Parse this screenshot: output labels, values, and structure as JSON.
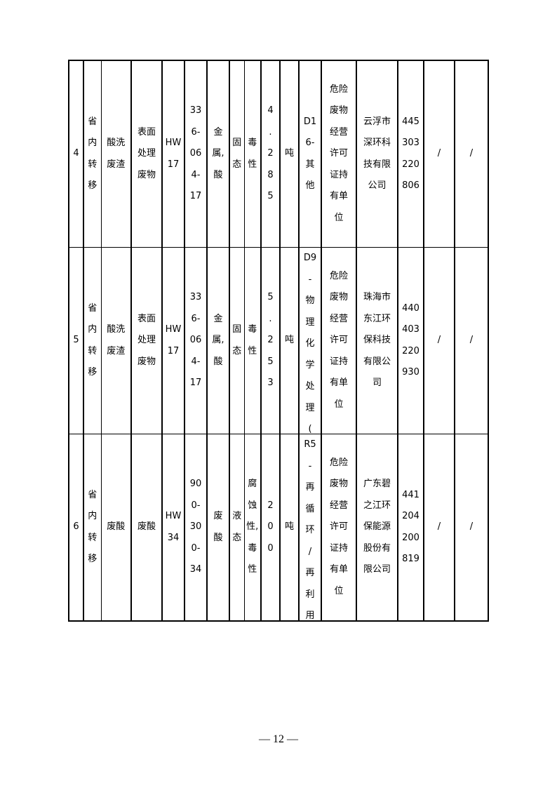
{
  "table": {
    "rows": [
      [
        [
          "4"
        ],
        [
          "省",
          "内",
          "转",
          "移"
        ],
        [
          "酸洗",
          "废渣"
        ],
        [
          "表面",
          "处理",
          "废物"
        ],
        [
          "HW",
          "17"
        ],
        [
          "33",
          "6-",
          "06",
          "4-",
          "17"
        ],
        [
          "金",
          "属,",
          "酸"
        ],
        [
          "固",
          "态"
        ],
        [
          "毒",
          "性"
        ],
        [
          "4",
          ".",
          "2",
          "8",
          "5"
        ],
        [
          "吨"
        ],
        [
          "D1",
          "6-",
          "其",
          "他"
        ],
        [
          "危险",
          "废物",
          "经营",
          "许可",
          "证持",
          "有单",
          "位"
        ],
        [
          "云浮市",
          "深环科",
          "技有限",
          "公司"
        ],
        [
          "445",
          "303",
          "220",
          "806"
        ],
        [
          "/"
        ],
        [
          "/"
        ]
      ],
      [
        [
          "5"
        ],
        [
          "省",
          "内",
          "转",
          "移"
        ],
        [
          "酸洗",
          "废渣"
        ],
        [
          "表面",
          "处理",
          "废物"
        ],
        [
          "HW",
          "17"
        ],
        [
          "33",
          "6-",
          "06",
          "4-",
          "17"
        ],
        [
          "金",
          "属,",
          "酸"
        ],
        [
          "固",
          "态"
        ],
        [
          "毒",
          "性"
        ],
        [
          "5",
          ".",
          "2",
          "5",
          "3"
        ],
        [
          "吨"
        ],
        [
          "D9",
          "-",
          "物",
          "理",
          "化",
          "学",
          "处",
          "理",
          "("
        ],
        [
          "危险",
          "废物",
          "经营",
          "许可",
          "证持",
          "有单",
          "位"
        ],
        [
          "珠海市",
          "东江环",
          "保科技",
          "有限公",
          "司"
        ],
        [
          "440",
          "403",
          "220",
          "930"
        ],
        [
          "/"
        ],
        [
          "/"
        ]
      ],
      [
        [
          "6"
        ],
        [
          "省",
          "内",
          "转",
          "移"
        ],
        [
          "废酸"
        ],
        [
          "废酸"
        ],
        [
          "HW",
          "34"
        ],
        [
          "90",
          "0-",
          "30",
          "0-",
          "34"
        ],
        [
          "废",
          "酸"
        ],
        [
          "液",
          "态"
        ],
        [
          "腐",
          "蚀",
          "性,",
          "毒",
          "性"
        ],
        [
          "2",
          "0",
          "0"
        ],
        [
          "吨"
        ],
        [
          "R5",
          "-",
          "再",
          "循",
          "环",
          "/",
          "再",
          "利",
          "用"
        ],
        [
          "危险",
          "废物",
          "经营",
          "许可",
          "证持",
          "有单",
          "位"
        ],
        [
          "广东碧",
          "之江环",
          "保能源",
          "股份有",
          "限公司"
        ],
        [
          "441",
          "204",
          "200",
          "819"
        ],
        [
          "/"
        ],
        [
          "/"
        ]
      ]
    ]
  },
  "page_number": "— 12 —"
}
